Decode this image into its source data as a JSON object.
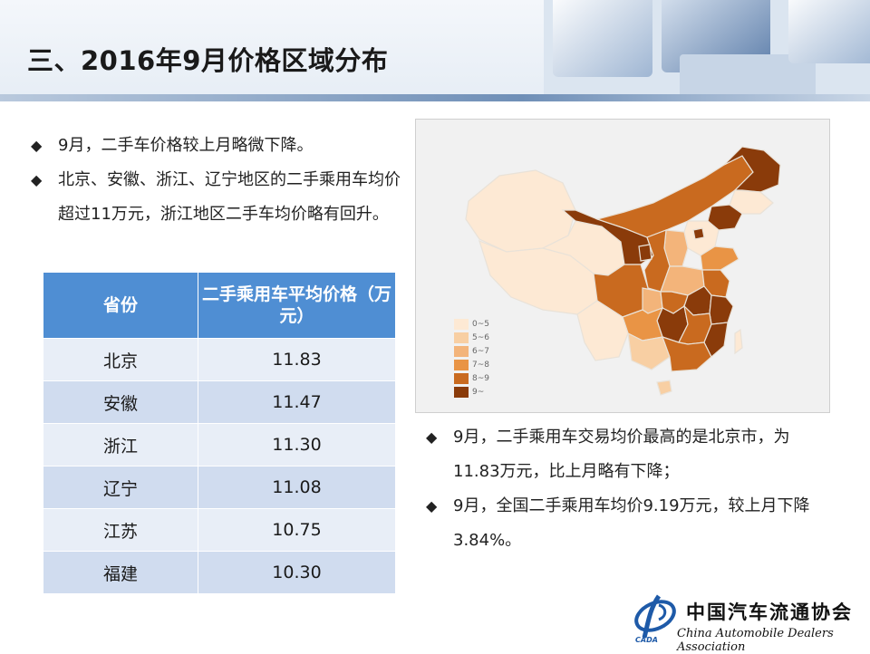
{
  "title": "三、2016年9月价格区域分布",
  "left_bullets": [
    "9月，二手车价格较上月略微下降。",
    "北京、安徽、浙江、辽宁地区的二手乘用车均价超过11万元，浙江地区二手车均价略有回升。"
  ],
  "table": {
    "headers": [
      "省份",
      "二手乘用车平均价格（万元）"
    ],
    "rows": [
      {
        "province": "北京",
        "price": "11.83"
      },
      {
        "province": "安徽",
        "price": "11.47"
      },
      {
        "province": "浙江",
        "price": "11.30"
      },
      {
        "province": "辽宁",
        "price": "11.08"
      },
      {
        "province": "江苏",
        "price": "10.75"
      },
      {
        "province": "福建",
        "price": "10.30"
      }
    ]
  },
  "map": {
    "legend": [
      {
        "label": "0~5",
        "color": "#fde9d4"
      },
      {
        "label": "5~6",
        "color": "#f8cfa3"
      },
      {
        "label": "6~7",
        "color": "#f3b47a"
      },
      {
        "label": "7~8",
        "color": "#e99445"
      },
      {
        "label": "8~9",
        "color": "#c96a1f"
      },
      {
        "label": "9~",
        "color": "#8a3b0a"
      }
    ]
  },
  "right_bullets": [
    "9月，二手乘用车交易均价最高的是北京市，为11.83万元，比上月略有下降；",
    "9月，全国二手乘用车均价9.19万元，较上月下降3.84%。"
  ],
  "logo": {
    "cn": "中国汽车流通协会",
    "en": "China Automobile Dealers Association",
    "abbr": "CADA"
  }
}
